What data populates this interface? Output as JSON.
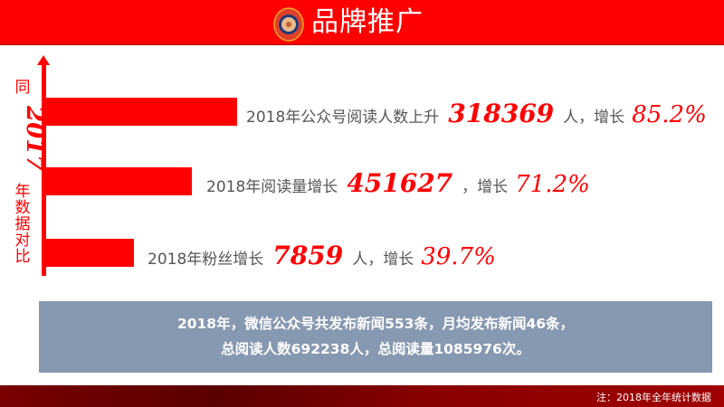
{
  "header": {
    "title": "品牌推广",
    "logo_icon": "emblem-logo"
  },
  "side_label": {
    "prefix": "同",
    "year": "2017",
    "suffix": [
      "年",
      "数",
      "据",
      "对",
      "比"
    ]
  },
  "rows": [
    {
      "label": "2018年公众号阅读人数上升",
      "value": "318369",
      "unit": "人，增长",
      "growth": "85.2%",
      "growth_value": 85.2
    },
    {
      "label": "2018年阅读量增长",
      "value": "451627",
      "unit": "，增长",
      "growth": "71.2%",
      "growth_value": 71.2
    },
    {
      "label": "2018年粉丝增长",
      "value": "7859",
      "unit": "人，增长",
      "growth": "39.7%",
      "growth_value": 39.7
    }
  ],
  "summary": {
    "line1": "2018年，微信公众号共发布新闻553条，月均发布新闻46条，",
    "line2": "总阅读人数692238人，总阅读量1085976次。"
  },
  "footer": {
    "note": "注：2018年全年统计数据"
  },
  "colors": {
    "accent": "#ff0000",
    "summary_bg": "#8799b0",
    "footer": "#7a0000"
  }
}
